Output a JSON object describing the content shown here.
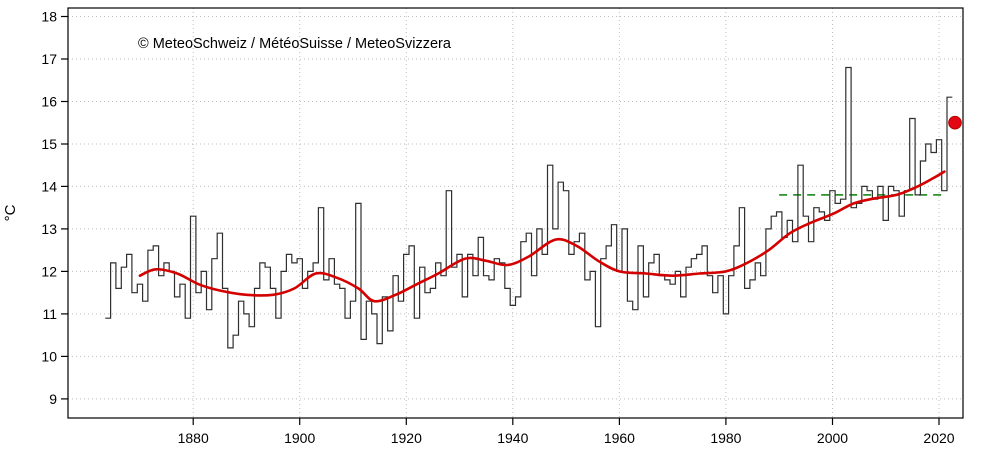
{
  "chart_data": {
    "type": "line",
    "title": "",
    "copyright": "© MeteoSchweiz / MétéoSuisse / MeteoSvizzera",
    "ylabel": "°C",
    "xlabel": "",
    "xlim": [
      1856.5,
      2024.5
    ],
    "ylim": [
      8.55,
      18.2
    ],
    "x_ticks": [
      1880,
      1900,
      1920,
      1940,
      1960,
      1980,
      2000,
      2020
    ],
    "y_ticks": [
      9,
      10,
      11,
      12,
      13,
      14,
      15,
      16,
      17,
      18
    ],
    "grid": {
      "show": true,
      "color": "#bdbdbd",
      "style": "dotted"
    },
    "series": [
      {
        "name": "annual-temperature",
        "render": "step",
        "color": "#2f2f2f",
        "start_year": 1864,
        "values": [
          10.9,
          12.2,
          11.6,
          12.1,
          12.4,
          11.5,
          11.7,
          11.3,
          12.5,
          12.6,
          11.9,
          12.2,
          12.0,
          11.4,
          11.7,
          10.9,
          13.3,
          11.5,
          12.0,
          11.1,
          12.3,
          12.9,
          11.6,
          10.2,
          10.5,
          11.3,
          11.0,
          10.7,
          11.6,
          12.2,
          12.1,
          11.6,
          10.9,
          12.0,
          12.4,
          12.2,
          12.3,
          11.6,
          12.0,
          12.2,
          13.5,
          11.8,
          12.3,
          11.7,
          11.6,
          10.9,
          11.3,
          13.6,
          10.4,
          11.3,
          11.0,
          10.3,
          11.4,
          10.6,
          11.9,
          11.3,
          12.4,
          12.6,
          10.9,
          12.1,
          11.5,
          11.6,
          12.2,
          11.9,
          13.9,
          12.1,
          12.4,
          11.4,
          12.4,
          11.9,
          12.8,
          11.9,
          11.8,
          12.3,
          12.2,
          11.6,
          11.2,
          11.4,
          12.7,
          12.9,
          11.9,
          13.0,
          12.4,
          14.5,
          13.0,
          14.1,
          13.9,
          12.4,
          12.7,
          12.9,
          11.8,
          12.0,
          10.7,
          12.3,
          12.6,
          13.1,
          12.0,
          13.0,
          11.3,
          11.1,
          12.6,
          11.4,
          12.2,
          12.4,
          11.9,
          11.8,
          11.7,
          12.0,
          11.4,
          12.1,
          12.3,
          12.4,
          12.6,
          11.9,
          11.5,
          11.9,
          11.0,
          11.9,
          12.6,
          13.5,
          11.6,
          11.8,
          12.2,
          11.9,
          13.0,
          13.3,
          13.4,
          12.8,
          13.2,
          12.7,
          14.5,
          13.3,
          12.7,
          13.5,
          13.4,
          13.2,
          13.9,
          13.6,
          13.7,
          16.8,
          13.5,
          13.6,
          14.0,
          13.9,
          13.7,
          14.0,
          13.2,
          14.0,
          13.9,
          13.3,
          13.9,
          15.6,
          13.8,
          14.6,
          15.0,
          14.8,
          15.1,
          13.9,
          16.1
        ]
      },
      {
        "name": "smoothed-trend",
        "render": "smooth",
        "color": "#d40000",
        "x": [
          1870,
          1873,
          1877,
          1881,
          1885,
          1890,
          1895,
          1899,
          1903,
          1907,
          1911,
          1914,
          1918,
          1922,
          1926,
          1931,
          1935,
          1939,
          1943,
          1948,
          1952,
          1956,
          1960,
          1965,
          1970,
          1975,
          1980,
          1984,
          1988,
          1992,
          1996,
          2000,
          2004,
          2008,
          2012,
          2016,
          2019,
          2021
        ],
        "values": [
          11.9,
          12.05,
          11.95,
          11.7,
          11.55,
          11.45,
          11.45,
          11.6,
          11.95,
          11.85,
          11.6,
          11.3,
          11.45,
          11.7,
          11.95,
          12.3,
          12.25,
          12.15,
          12.35,
          12.75,
          12.6,
          12.25,
          12.0,
          11.95,
          11.9,
          11.95,
          12.0,
          12.2,
          12.5,
          12.9,
          13.15,
          13.35,
          13.6,
          13.72,
          13.8,
          14.0,
          14.2,
          14.35
        ]
      }
    ],
    "reference_line": {
      "y": 13.8,
      "x_start": 1990,
      "x_end": 2021,
      "color": "#2d8f2d",
      "style": "dashed"
    },
    "highlight_point": {
      "x": 2023,
      "value": 15.5,
      "color": "#e30613",
      "radius": 6.3
    }
  }
}
